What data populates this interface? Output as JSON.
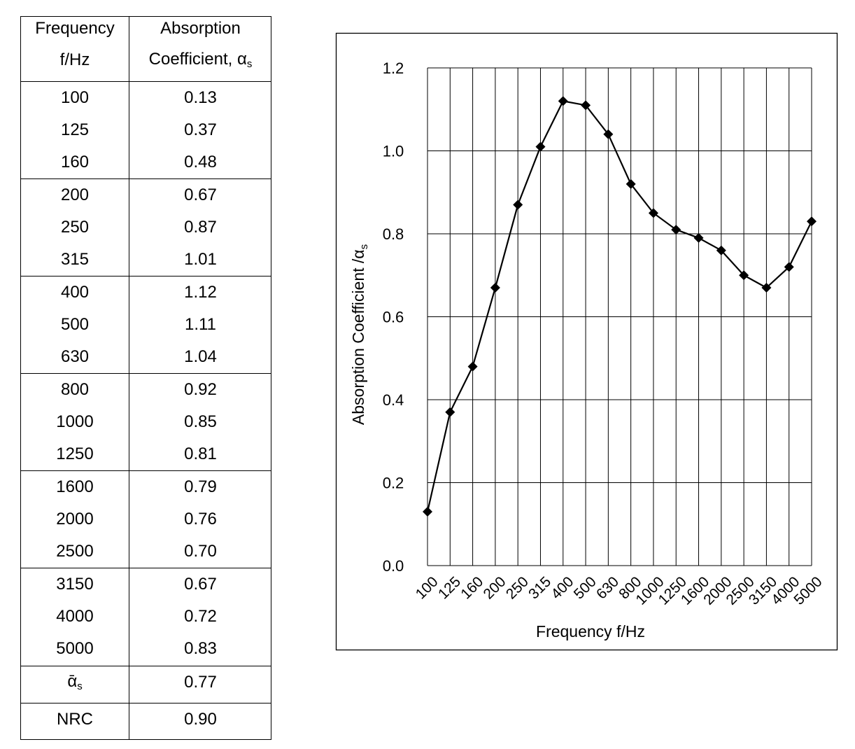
{
  "table": {
    "header": {
      "col1_line1": "Frequency",
      "col1_line2": "f/Hz",
      "col2_line1": "Absorption",
      "col2_line2": "Coefficient, α",
      "col2_sub": "s"
    },
    "rows": [
      [
        "100",
        "0.13"
      ],
      [
        "125",
        "0.37"
      ],
      [
        "160",
        "0.48"
      ],
      [
        "200",
        "0.67"
      ],
      [
        "250",
        "0.87"
      ],
      [
        "315",
        "1.01"
      ],
      [
        "400",
        "1.12"
      ],
      [
        "500",
        "1.11"
      ],
      [
        "630",
        "1.04"
      ],
      [
        "800",
        "0.92"
      ],
      [
        "1000",
        "0.85"
      ],
      [
        "1250",
        "0.81"
      ],
      [
        "1600",
        "0.79"
      ],
      [
        "2000",
        "0.76"
      ],
      [
        "2500",
        "0.70"
      ],
      [
        "3150",
        "0.67"
      ],
      [
        "4000",
        "0.72"
      ],
      [
        "5000",
        "0.83"
      ]
    ],
    "mean": {
      "label": "ᾱ",
      "sub": "s",
      "value": "0.77"
    },
    "nrc": {
      "label": "NRC",
      "value": "0.90"
    }
  },
  "chart_data": {
    "type": "line",
    "categories": [
      "100",
      "125",
      "160",
      "200",
      "250",
      "315",
      "400",
      "500",
      "630",
      "800",
      "1000",
      "1250",
      "1600",
      "2000",
      "2500",
      "3150",
      "4000",
      "5000"
    ],
    "values": [
      0.13,
      0.37,
      0.48,
      0.67,
      0.87,
      1.01,
      1.12,
      1.11,
      1.04,
      0.92,
      0.85,
      0.81,
      0.79,
      0.76,
      0.7,
      0.67,
      0.72,
      0.83
    ],
    "xlabel": "Frequency f/Hz",
    "ylabel": "Absorption Coefficient /α",
    "ylabel_sub": "s",
    "ylim": [
      0,
      1.2
    ],
    "yticks": [
      "0.0",
      "0.2",
      "0.4",
      "0.6",
      "0.8",
      "1.0",
      "1.2"
    ],
    "grid": true,
    "marker": "diamond",
    "color": "#000000"
  }
}
